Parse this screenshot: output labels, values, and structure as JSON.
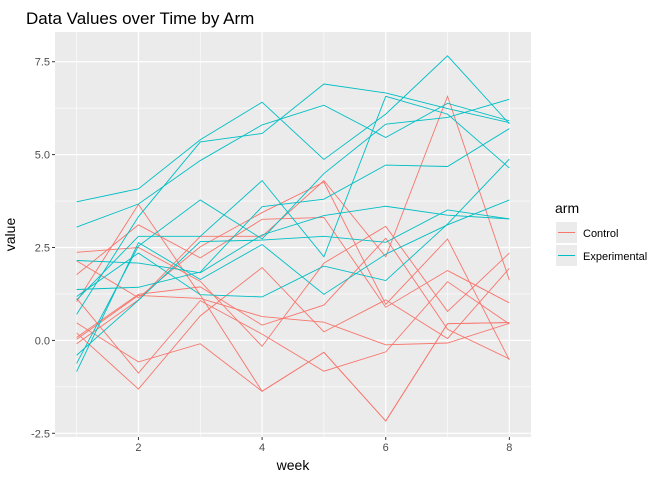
{
  "chart_data": {
    "type": "line",
    "title": "Data Values over Time by Arm",
    "xlabel": "week",
    "ylabel": "value",
    "xlim": [
      0.65,
      8.35
    ],
    "ylim": [
      -2.6,
      8.3
    ],
    "x_ticks": [
      2,
      4,
      6,
      8
    ],
    "y_ticks": [
      -2.5,
      0.0,
      2.5,
      5.0,
      7.5
    ],
    "y_tick_labels": [
      "-2.5",
      "0.0",
      "2.5",
      "5.0",
      "7.5"
    ],
    "grid": true,
    "legend": {
      "title": "arm",
      "placement": "right",
      "entries": [
        {
          "label": "Control",
          "color": "#F8766D"
        },
        {
          "label": "Experimental",
          "color": "#00BFC4"
        }
      ]
    },
    "x": [
      1,
      2,
      3,
      4,
      5,
      6,
      7,
      8
    ],
    "series": [
      {
        "group": "Control",
        "values": [
          0.2,
          -1.31,
          0.66,
          1.96,
          0.23,
          1.09,
          0.05,
          1.94
        ]
      },
      {
        "group": "Control",
        "values": [
          1.13,
          -0.88,
          1.07,
          0.17,
          -0.83,
          -0.31,
          1.58,
          0.44
        ]
      },
      {
        "group": "Control",
        "values": [
          1.77,
          3.11,
          2.22,
          3.26,
          3.31,
          0.89,
          1.88,
          1.01
        ]
      },
      {
        "group": "Control",
        "values": [
          1.04,
          3.66,
          1.22,
          -1.37,
          -0.32,
          -2.17,
          0.45,
          0.48
        ]
      },
      {
        "group": "Control",
        "values": [
          0.47,
          -0.58,
          -0.09,
          -1.37,
          -0.32,
          -2.17,
          0.45,
          0.48
        ]
      },
      {
        "group": "Control",
        "values": [
          2.37,
          2.5,
          1.59,
          -0.16,
          2.08,
          3.07,
          0.78,
          2.35
        ]
      },
      {
        "group": "Control",
        "values": [
          0.03,
          1.21,
          1.13,
          0.64,
          0.49,
          -0.12,
          -0.07,
          0.46
        ]
      },
      {
        "group": "Control",
        "values": [
          -0.09,
          1.09,
          2.8,
          2.8,
          4.3,
          2.25,
          6.57,
          1.62
        ]
      },
      {
        "group": "Control",
        "values": [
          0.08,
          1.24,
          1.44,
          0.41,
          0.95,
          2.75,
          0.3,
          -0.5
        ]
      },
      {
        "group": "Control",
        "values": [
          2.14,
          1.15,
          2.52,
          3.44,
          4.26,
          0.97,
          2.73,
          -0.53
        ]
      },
      {
        "group": "Experimental",
        "values": [
          3.05,
          3.67,
          4.84,
          5.8,
          6.33,
          5.46,
          6.38,
          5.91
        ]
      },
      {
        "group": "Experimental",
        "values": [
          -0.84,
          2.63,
          1.64,
          2.58,
          1.24,
          2.32,
          3.11,
          3.78
        ]
      },
      {
        "group": "Experimental",
        "values": [
          2.15,
          2.08,
          1.82,
          2.84,
          3.36,
          3.61,
          3.37,
          3.27
        ]
      },
      {
        "group": "Experimental",
        "values": [
          -0.62,
          2.54,
          3.78,
          2.73,
          4.49,
          5.82,
          6.0,
          6.49
        ]
      },
      {
        "group": "Experimental",
        "values": [
          0.7,
          3.33,
          5.34,
          5.57,
          6.9,
          6.66,
          6.24,
          5.86
        ]
      },
      {
        "group": "Experimental",
        "values": [
          3.73,
          4.08,
          5.4,
          6.41,
          4.87,
          6.09,
          7.66,
          5.83
        ]
      },
      {
        "group": "Experimental",
        "values": [
          1.18,
          2.35,
          1.23,
          1.17,
          2.0,
          1.61,
          3.13,
          4.88
        ]
      },
      {
        "group": "Experimental",
        "values": [
          1.37,
          1.43,
          1.84,
          3.6,
          3.8,
          4.72,
          4.68,
          5.7
        ]
      },
      {
        "group": "Experimental",
        "values": [
          -0.4,
          1.08,
          2.66,
          2.7,
          2.8,
          2.64,
          3.51,
          3.27
        ]
      },
      {
        "group": "Experimental",
        "values": [
          1.09,
          2.8,
          2.8,
          4.3,
          2.25,
          6.57,
          6.09,
          4.64
        ]
      }
    ]
  }
}
